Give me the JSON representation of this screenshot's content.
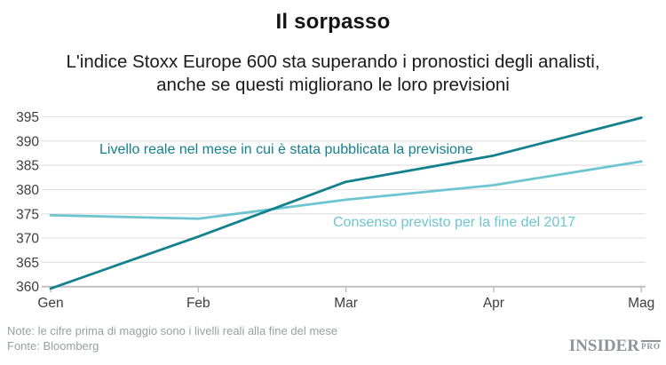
{
  "title": "Il sorpasso",
  "subtitle_line1": "L'indice Stoxx Europe 600 sta superando i pronostici degli analisti,",
  "subtitle_line2": "anche se questi migliorano le loro previsioni",
  "notes": {
    "note": "Note: le cifre prima di maggio sono i livelli reali alla fine del mese",
    "source": "Fonte: Bloomberg"
  },
  "logo": {
    "name": "INSIDER",
    "suffix": "PRO"
  },
  "colors": {
    "actual": "#14808e",
    "consensus": "#6cc5d0",
    "grid": "#e2e2e2",
    "axis": "#bfbfbf",
    "tick_label": "#3d3d3d",
    "note_text": "#9aa0a3",
    "logo_gray": "#8d949c",
    "title_text": "#141414"
  },
  "chart_data": {
    "type": "line",
    "title": "Il sorpasso",
    "categories": [
      "Gen",
      "Feb",
      "Mar",
      "Apr",
      "Mag"
    ],
    "series": [
      {
        "name": "Livello reale nel mese in cui è stata pubblicata la previsione",
        "color_key": "actual",
        "values": [
          359.6,
          370.3,
          381.6,
          387.0,
          394.8
        ]
      },
      {
        "name": "Consenso previsto per la fine del 2017",
        "color_key": "consensus",
        "values": [
          374.7,
          374.0,
          377.9,
          380.9,
          385.8
        ]
      }
    ],
    "xlabel": "",
    "ylabel": "",
    "ylim": [
      360,
      395
    ],
    "y_ticks": [
      360,
      365,
      370,
      375,
      380,
      385,
      390,
      395
    ],
    "grid": true,
    "legend_position": "inline-annotations"
  }
}
